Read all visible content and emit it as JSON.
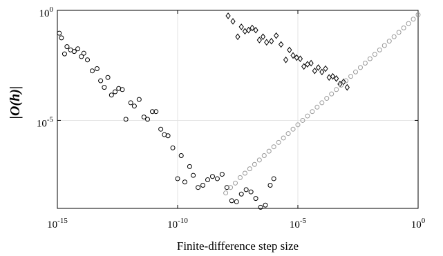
{
  "chart_data": {
    "type": "scatter",
    "title": "",
    "xlabel": "Finite-difference step size",
    "ylabel": "|O(h)|",
    "x_scale": "log",
    "y_scale": "log",
    "xlim": [
      1e-15,
      1
    ],
    "ylim": [
      1e-09,
      1
    ],
    "grid": true,
    "legend": "none",
    "x_ticks": [
      {
        "base": "10",
        "exp": "-15",
        "value": 1e-15
      },
      {
        "base": "10",
        "exp": "-10",
        "value": 1e-10
      },
      {
        "base": "10",
        "exp": "-5",
        "value": 1e-05
      },
      {
        "base": "10",
        "exp": "0",
        "value": 1
      }
    ],
    "y_ticks": [
      {
        "base": "10",
        "exp": "-5",
        "value": 1e-05
      },
      {
        "base": "10",
        "exp": "0",
        "value": 1
      }
    ],
    "series": [
      {
        "marker": "circle",
        "color": "#000000",
        "points": [
          [
            -14.92,
            -1.04
          ],
          [
            -14.83,
            -1.25
          ],
          [
            -14.7,
            -1.98
          ],
          [
            -14.6,
            -1.65
          ],
          [
            -14.45,
            -1.8
          ],
          [
            -14.3,
            -1.87
          ],
          [
            -14.15,
            -1.75
          ],
          [
            -14.0,
            -2.1
          ],
          [
            -13.9,
            -1.95
          ],
          [
            -13.75,
            -2.25
          ],
          [
            -13.55,
            -2.75
          ],
          [
            -13.35,
            -2.65
          ],
          [
            -13.2,
            -3.2
          ],
          [
            -13.05,
            -3.5
          ],
          [
            -12.9,
            -3.05
          ],
          [
            -12.75,
            -3.85
          ],
          [
            -12.6,
            -3.7
          ],
          [
            -12.45,
            -3.55
          ],
          [
            -12.3,
            -3.6
          ],
          [
            -12.15,
            -4.95
          ],
          [
            -11.95,
            -4.2
          ],
          [
            -11.8,
            -4.35
          ],
          [
            -11.6,
            -4.05
          ],
          [
            -11.4,
            -4.85
          ],
          [
            -11.25,
            -4.95
          ],
          [
            -11.05,
            -4.6
          ],
          [
            -10.9,
            -4.6
          ],
          [
            -10.7,
            -5.4
          ],
          [
            -10.55,
            -5.65
          ],
          [
            -10.4,
            -5.7
          ],
          [
            -10.2,
            -6.25
          ],
          [
            -10.0,
            -7.65
          ],
          [
            -9.85,
            -6.6
          ],
          [
            -9.7,
            -7.8
          ],
          [
            -9.5,
            -7.1
          ],
          [
            -9.35,
            -7.5
          ],
          [
            -9.15,
            -8.05
          ],
          [
            -8.95,
            -7.95
          ],
          [
            -8.75,
            -7.7
          ],
          [
            -8.55,
            -7.55
          ],
          [
            -8.35,
            -7.65
          ],
          [
            -8.15,
            -7.45
          ],
          [
            -7.95,
            -8.05
          ],
          [
            -7.75,
            -8.65
          ],
          [
            -7.55,
            -8.7
          ],
          [
            -7.35,
            -8.35
          ],
          [
            -7.15,
            -8.15
          ],
          [
            -6.95,
            -8.25
          ],
          [
            -6.75,
            -8.55
          ],
          [
            -6.55,
            -8.95
          ],
          [
            -6.35,
            -8.85
          ],
          [
            -6.15,
            -7.95
          ],
          [
            -6.0,
            -7.65
          ]
        ]
      },
      {
        "marker": "diamond",
        "color": "#000000",
        "points": [
          [
            -7.9,
            -0.25
          ],
          [
            -7.7,
            -0.5
          ],
          [
            -7.5,
            -1.2
          ],
          [
            -7.35,
            -0.75
          ],
          [
            -7.2,
            -0.95
          ],
          [
            -7.05,
            -0.9
          ],
          [
            -6.9,
            -0.8
          ],
          [
            -6.75,
            -0.9
          ],
          [
            -6.6,
            -1.35
          ],
          [
            -6.45,
            -1.2
          ],
          [
            -6.3,
            -1.45
          ],
          [
            -6.1,
            -1.4
          ],
          [
            -5.9,
            -1.15
          ],
          [
            -5.7,
            -1.55
          ],
          [
            -5.5,
            -2.25
          ],
          [
            -5.35,
            -1.8
          ],
          [
            -5.2,
            -2.05
          ],
          [
            -5.05,
            -2.15
          ],
          [
            -4.9,
            -2.2
          ],
          [
            -4.75,
            -2.55
          ],
          [
            -4.6,
            -2.45
          ],
          [
            -4.45,
            -2.4
          ],
          [
            -4.3,
            -2.75
          ],
          [
            -4.15,
            -2.6
          ],
          [
            -4.0,
            -2.8
          ],
          [
            -3.85,
            -2.65
          ],
          [
            -3.7,
            -3.05
          ],
          [
            -3.55,
            -3.0
          ],
          [
            -3.4,
            -3.1
          ],
          [
            -3.25,
            -3.35
          ],
          [
            -3.1,
            -3.25
          ],
          [
            -2.95,
            -3.5
          ]
        ]
      },
      {
        "marker": "circle",
        "color": "#999999",
        "points": [
          [
            -8.0,
            -8.3
          ],
          [
            -7.8,
            -8.05
          ],
          [
            -7.6,
            -7.85
          ],
          [
            -7.4,
            -7.6
          ],
          [
            -7.2,
            -7.4
          ],
          [
            -7.0,
            -7.2
          ],
          [
            -6.8,
            -7.0
          ],
          [
            -6.6,
            -6.8
          ],
          [
            -6.4,
            -6.6
          ],
          [
            -6.2,
            -6.4
          ],
          [
            -6.0,
            -6.2
          ],
          [
            -5.8,
            -6.0
          ],
          [
            -5.6,
            -5.8
          ],
          [
            -5.4,
            -5.6
          ],
          [
            -5.2,
            -5.4
          ],
          [
            -5.0,
            -5.2
          ],
          [
            -4.8,
            -5.0
          ],
          [
            -4.6,
            -4.8
          ],
          [
            -4.4,
            -4.6
          ],
          [
            -4.2,
            -4.4
          ],
          [
            -4.0,
            -4.2
          ],
          [
            -3.8,
            -4.0
          ],
          [
            -3.6,
            -3.8
          ],
          [
            -3.4,
            -3.6
          ],
          [
            -3.2,
            -3.4
          ],
          [
            -3.0,
            -3.2
          ],
          [
            -2.8,
            -3.0
          ],
          [
            -2.6,
            -2.8
          ],
          [
            -2.4,
            -2.6
          ],
          [
            -2.2,
            -2.4
          ],
          [
            -2.0,
            -2.2
          ],
          [
            -1.8,
            -2.0
          ],
          [
            -1.6,
            -1.8
          ],
          [
            -1.4,
            -1.6
          ],
          [
            -1.2,
            -1.4
          ],
          [
            -1.0,
            -1.2
          ],
          [
            -0.8,
            -1.0
          ],
          [
            -0.6,
            -0.8
          ],
          [
            -0.4,
            -0.6
          ],
          [
            -0.2,
            -0.4
          ],
          [
            0.0,
            -0.2
          ]
        ]
      }
    ]
  }
}
